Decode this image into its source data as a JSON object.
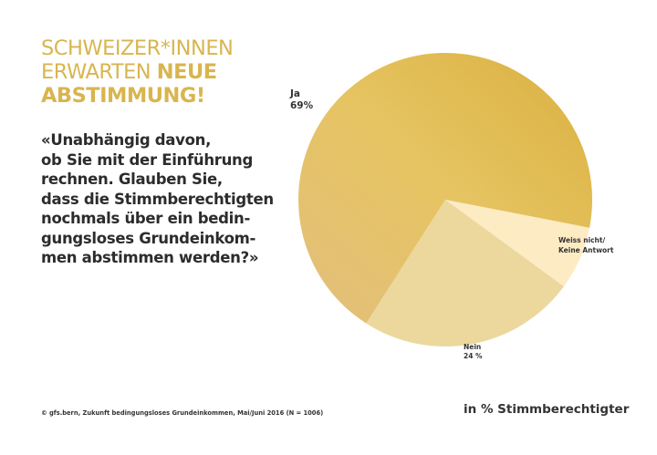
{
  "title": {
    "line1": "SCHWEIZER*INNEN",
    "line2_light": "ERWARTEN ",
    "line2_bold": "NEUE",
    "line3_bold": "ABSTIMMUNG!"
  },
  "question": {
    "lines": [
      "«Unabhängig davon,",
      "ob Sie mit der Einführung",
      "rechnen. Glauben Sie,",
      "dass die Stimmberechtigten",
      "nochmals über ein bedin-",
      "gungsloses Grundeinkom-",
      "men abstimmen werden?»"
    ]
  },
  "chart_data": {
    "type": "pie",
    "title": "Schweizer*innen erwarten neue Abstimmung!",
    "unit_label": "in % Stimmberechtigter",
    "slices": [
      {
        "name": "Weiss nicht/ Keine Antwort",
        "label_line1": "Weiss nicht/",
        "label_line2": "Keine Antwort",
        "value": 7,
        "color": "#fdebc3"
      },
      {
        "name": "Nein",
        "label_line1": "Nein",
        "label_line2": "24 %",
        "value": 24,
        "color": "#ecd89d"
      },
      {
        "name": "Ja",
        "label_line1": "Ja",
        "label_line2": "69%",
        "value": 69,
        "color": "#e0bc55",
        "color_light": "#e3c27a"
      }
    ],
    "start_angle_deg": 101,
    "direction": "clockwise"
  },
  "footer": {
    "source": "© gfs.bern, Zukunft bedingungsloses Grundeinkommen, Mai/Juni 2016 (N = 1006)",
    "unit": "in % Stimmberechtigter"
  }
}
